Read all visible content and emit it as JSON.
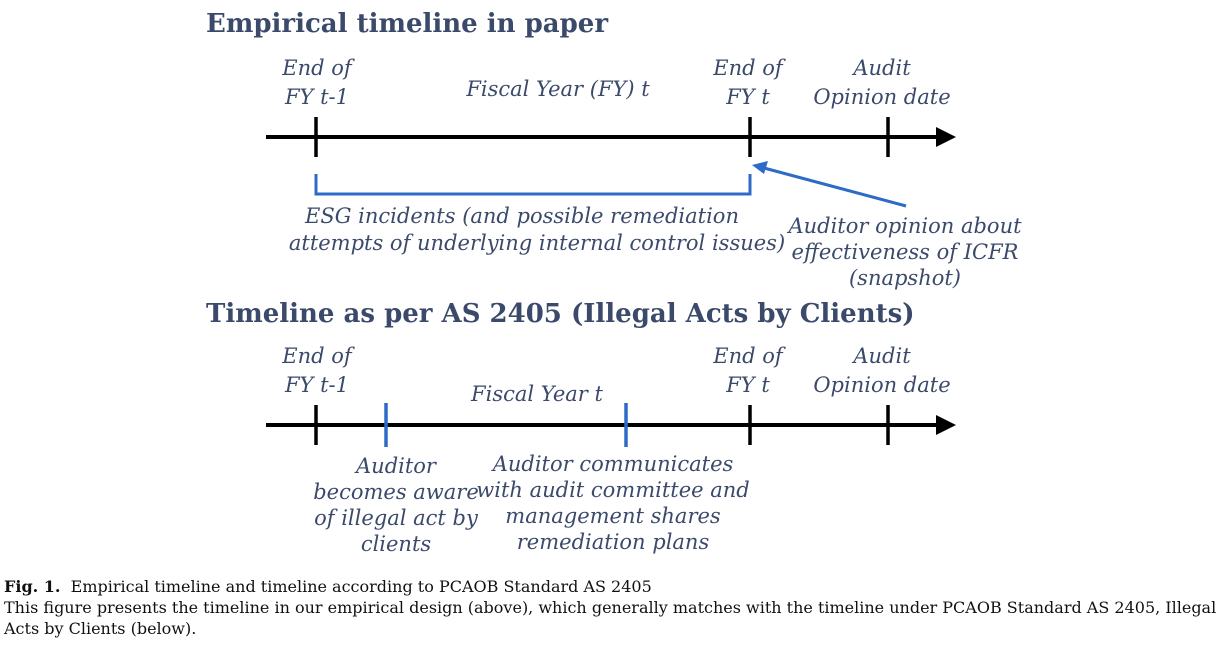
{
  "top": {
    "heading": "Empirical timeline in paper",
    "end_prev_line1": "End of",
    "end_prev_line2": "FY t-1",
    "fiscal_year": "Fiscal Year (FY) t",
    "end_fy_line1": "End of",
    "end_fy_line2": "FY t",
    "audit_line1": "Audit",
    "audit_line2": "Opinion date",
    "esg_line1": "ESG incidents (and possible remediation",
    "esg_line2": "attempts of underlying internal control issues)",
    "opinion_line1": "Auditor opinion about",
    "opinion_line2": "effectiveness of ICFR",
    "opinion_line3": "(snapshot)"
  },
  "bottom": {
    "heading": "Timeline as per AS 2405 (Illegal Acts by Clients)",
    "end_prev_line1": "End of",
    "end_prev_line2": "FY t-1",
    "fiscal_year": "Fiscal Year t",
    "end_fy_line1": "End of",
    "end_fy_line2": "FY t",
    "audit_line1": "Audit",
    "audit_line2": "Opinion date",
    "aware_line1": "Auditor",
    "aware_line2": "becomes aware",
    "aware_line3": "of illegal act by",
    "aware_line4": "clients",
    "comm_line1": "Auditor communicates",
    "comm_line2": "with audit committee and",
    "comm_line3": "management shares",
    "comm_line4": "remediation plans"
  },
  "caption": {
    "label": "Fig. 1.",
    "title": "Empirical timeline and timeline according to PCAOB Standard AS 2405",
    "text": "This figure presents the timeline in our empirical design (above), which generally matches with the timeline under PCAOB Standard AS 2405, Illegal Acts by Clients (below)."
  },
  "colors": {
    "text": "#3b4a6b",
    "axis": "#000000",
    "accent": "#2e6bc6"
  }
}
